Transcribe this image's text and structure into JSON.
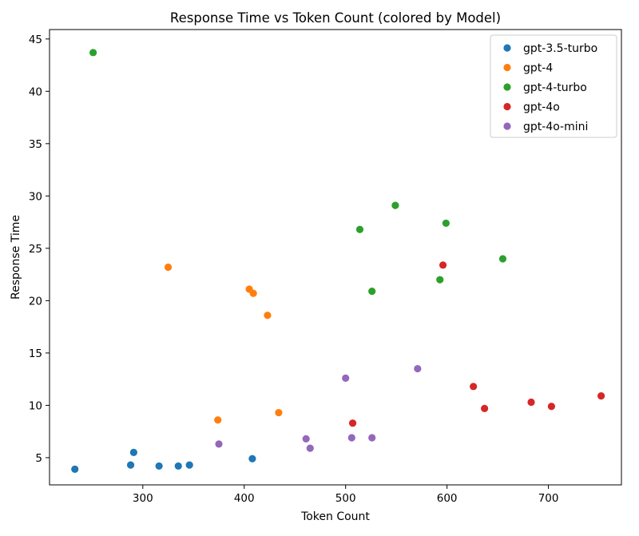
{
  "chart_data": {
    "type": "scatter",
    "title": "Response Time vs Token Count (colored by Model)",
    "xlabel": "Token Count",
    "ylabel": "Response Time",
    "xlim": [
      208,
      772
    ],
    "ylim": [
      2.4,
      45.9
    ],
    "xticks": [
      300,
      400,
      500,
      600,
      700
    ],
    "yticks": [
      5,
      10,
      15,
      20,
      25,
      30,
      35,
      40,
      45
    ],
    "grid": false,
    "legend_position": "top-right",
    "series": [
      {
        "name": "gpt-3.5-turbo",
        "color": "#1f77b4",
        "points": [
          [
            233,
            3.9
          ],
          [
            288,
            4.3
          ],
          [
            291,
            5.5
          ],
          [
            316,
            4.2
          ],
          [
            335,
            4.2
          ],
          [
            346,
            4.3
          ],
          [
            408,
            4.9
          ]
        ]
      },
      {
        "name": "gpt-4",
        "color": "#ff7f0e",
        "points": [
          [
            325,
            23.2
          ],
          [
            374,
            8.6
          ],
          [
            405,
            21.1
          ],
          [
            409,
            20.7
          ],
          [
            423,
            18.6
          ],
          [
            434,
            9.3
          ]
        ]
      },
      {
        "name": "gpt-4-turbo",
        "color": "#2ca02c",
        "points": [
          [
            251,
            43.7
          ],
          [
            514,
            26.8
          ],
          [
            526,
            20.9
          ],
          [
            549,
            29.1
          ],
          [
            593,
            22.0
          ],
          [
            599,
            27.4
          ],
          [
            655,
            24.0
          ]
        ]
      },
      {
        "name": "gpt-4o",
        "color": "#d62728",
        "points": [
          [
            507,
            8.3
          ],
          [
            596,
            23.4
          ],
          [
            626,
            11.8
          ],
          [
            637,
            9.7
          ],
          [
            683,
            10.3
          ],
          [
            703,
            9.9
          ],
          [
            752,
            10.9
          ]
        ]
      },
      {
        "name": "gpt-4o-mini",
        "color": "#9467bd",
        "points": [
          [
            375,
            6.3
          ],
          [
            461,
            6.8
          ],
          [
            465,
            5.9
          ],
          [
            500,
            12.6
          ],
          [
            506,
            6.9
          ],
          [
            526,
            6.9
          ],
          [
            571,
            13.5
          ]
        ]
      }
    ]
  }
}
